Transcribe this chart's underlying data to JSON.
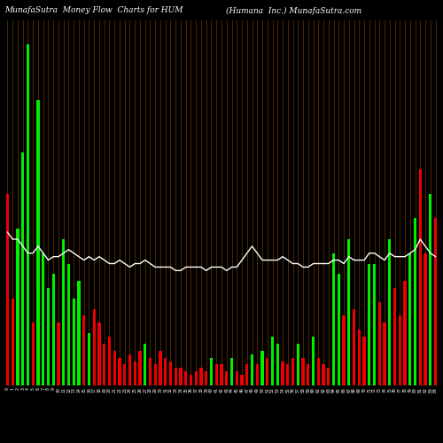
{
  "title_left": "MunafaSutra  Money Flow  Charts for HUM",
  "title_right": "(Humana  Inc.) MunafaSutra.com",
  "background_color": "#000000",
  "bar_colors": [
    "red",
    "red",
    "green",
    "green",
    "green",
    "red",
    "green",
    "green",
    "green",
    "green",
    "red",
    "green",
    "green",
    "green",
    "green",
    "red",
    "green",
    "red",
    "red",
    "red",
    "red",
    "red",
    "red",
    "red",
    "red",
    "red",
    "red",
    "green",
    "red",
    "red",
    "red",
    "red",
    "red",
    "red",
    "red",
    "red",
    "red",
    "red",
    "red",
    "red",
    "green",
    "red",
    "red",
    "red",
    "green",
    "red",
    "red",
    "red",
    "green",
    "red",
    "green",
    "red",
    "green",
    "green",
    "red",
    "red",
    "red",
    "green",
    "red",
    "red",
    "green",
    "red",
    "red",
    "red",
    "green",
    "green",
    "red",
    "green",
    "red",
    "red",
    "red",
    "green",
    "green",
    "red",
    "red",
    "green",
    "red",
    "red",
    "red",
    "green",
    "green",
    "red",
    "red",
    "green",
    "red"
  ],
  "bar_heights": [
    0.55,
    0.25,
    0.45,
    0.67,
    0.98,
    0.18,
    0.82,
    0.38,
    0.28,
    0.32,
    0.18,
    0.42,
    0.35,
    0.25,
    0.3,
    0.2,
    0.15,
    0.22,
    0.18,
    0.12,
    0.14,
    0.1,
    0.08,
    0.06,
    0.09,
    0.07,
    0.1,
    0.12,
    0.08,
    0.06,
    0.1,
    0.08,
    0.07,
    0.05,
    0.05,
    0.04,
    0.03,
    0.04,
    0.05,
    0.04,
    0.08,
    0.06,
    0.06,
    0.04,
    0.08,
    0.04,
    0.03,
    0.06,
    0.09,
    0.06,
    0.1,
    0.08,
    0.14,
    0.12,
    0.07,
    0.06,
    0.08,
    0.12,
    0.08,
    0.06,
    0.14,
    0.08,
    0.06,
    0.05,
    0.38,
    0.32,
    0.2,
    0.42,
    0.22,
    0.16,
    0.14,
    0.35,
    0.35,
    0.24,
    0.18,
    0.42,
    0.28,
    0.2,
    0.3,
    0.38,
    0.48,
    0.62,
    0.38,
    0.55,
    0.48
  ],
  "line_values": [
    0.44,
    0.42,
    0.42,
    0.4,
    0.38,
    0.38,
    0.4,
    0.38,
    0.36,
    0.37,
    0.37,
    0.38,
    0.39,
    0.38,
    0.37,
    0.36,
    0.37,
    0.36,
    0.37,
    0.36,
    0.35,
    0.35,
    0.36,
    0.35,
    0.34,
    0.35,
    0.35,
    0.36,
    0.35,
    0.34,
    0.34,
    0.34,
    0.34,
    0.33,
    0.33,
    0.34,
    0.34,
    0.34,
    0.34,
    0.33,
    0.34,
    0.34,
    0.34,
    0.33,
    0.34,
    0.34,
    0.36,
    0.38,
    0.4,
    0.38,
    0.36,
    0.36,
    0.36,
    0.36,
    0.37,
    0.36,
    0.35,
    0.35,
    0.34,
    0.34,
    0.35,
    0.35,
    0.35,
    0.35,
    0.36,
    0.36,
    0.35,
    0.37,
    0.36,
    0.36,
    0.36,
    0.38,
    0.38,
    0.37,
    0.36,
    0.38,
    0.37,
    0.37,
    0.37,
    0.38,
    0.39,
    0.42,
    0.4,
    0.38,
    0.37
  ],
  "text_color": "#ffffff",
  "green_color": "#00ee00",
  "red_color": "#ee0000",
  "line_color": "#ffffff",
  "grid_color": "#8B4500",
  "title_fontsize": 6.5,
  "tick_fontsize": 3.5,
  "ylim": [
    0,
    1.05
  ]
}
